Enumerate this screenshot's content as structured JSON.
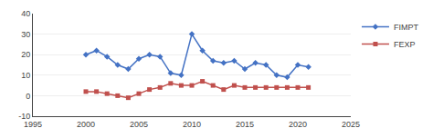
{
  "chart_data": {
    "type": "line",
    "x": [
      2000,
      2001,
      2002,
      2003,
      2004,
      2005,
      2006,
      2007,
      2008,
      2009,
      2010,
      2011,
      2012,
      2013,
      2014,
      2015,
      2016,
      2017,
      2018,
      2019,
      2020,
      2021
    ],
    "series": [
      {
        "name": "FIMPT",
        "color": "#4472C4",
        "marker": "diamond",
        "values": [
          20,
          22,
          19,
          15,
          13,
          18,
          20,
          19,
          11,
          10,
          30,
          22,
          17,
          16,
          17,
          13,
          16,
          15,
          10,
          9,
          15,
          14
        ]
      },
      {
        "name": "FEXP",
        "color": "#C0504D",
        "marker": "square",
        "values": [
          2,
          2,
          1,
          0,
          -1,
          1,
          3,
          4,
          6,
          5,
          5,
          7,
          5,
          3,
          5,
          4,
          4,
          4,
          4,
          4,
          4,
          4
        ]
      }
    ],
    "xlim": [
      1995,
      2025
    ],
    "xticks": [
      1995,
      2000,
      2005,
      2010,
      2015,
      2020,
      2025
    ],
    "ylim": [
      -10,
      40
    ],
    "yticks": [
      -10,
      0,
      10,
      20,
      30,
      40
    ],
    "grid": "y",
    "legend": "right"
  }
}
